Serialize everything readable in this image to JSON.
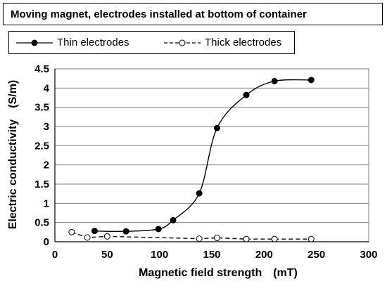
{
  "chart_data": {
    "type": "line",
    "title": "Moving magnet, electrodes installed at bottom of container",
    "xlabel": "Magnetic field strength　(mT)",
    "ylabel": "Electric conductivity　(S/m)",
    "xlim": [
      0,
      300
    ],
    "ylim": [
      0,
      4.5
    ],
    "xticks": [
      0,
      50,
      100,
      150,
      200,
      250,
      300
    ],
    "yticks": [
      0,
      0.5,
      1,
      1.5,
      2,
      2.5,
      3,
      3.5,
      4,
      4.5
    ],
    "ytick_labels": [
      "0",
      "0.5",
      "1",
      "1.5",
      "2",
      "2.5",
      "3",
      "3.5",
      "4",
      "4.5"
    ],
    "grid": "horizontal",
    "legend_position": "top",
    "series": [
      {
        "name": "Thin electrodes",
        "marker": "filled-circle",
        "line": "solid",
        "x": [
          38,
          68,
          99,
          113,
          138,
          155,
          183,
          210,
          245
        ],
        "y": [
          0.28,
          0.27,
          0.33,
          0.56,
          1.26,
          2.96,
          3.82,
          4.18,
          4.21
        ]
      },
      {
        "name": "Thick electrodes",
        "marker": "hollow-circle",
        "line": "dashed",
        "x": [
          16,
          31,
          50,
          138,
          155,
          183,
          210,
          245
        ],
        "y": [
          0.25,
          0.11,
          0.14,
          0.08,
          0.1,
          0.07,
          0.07,
          0.07
        ]
      }
    ]
  }
}
